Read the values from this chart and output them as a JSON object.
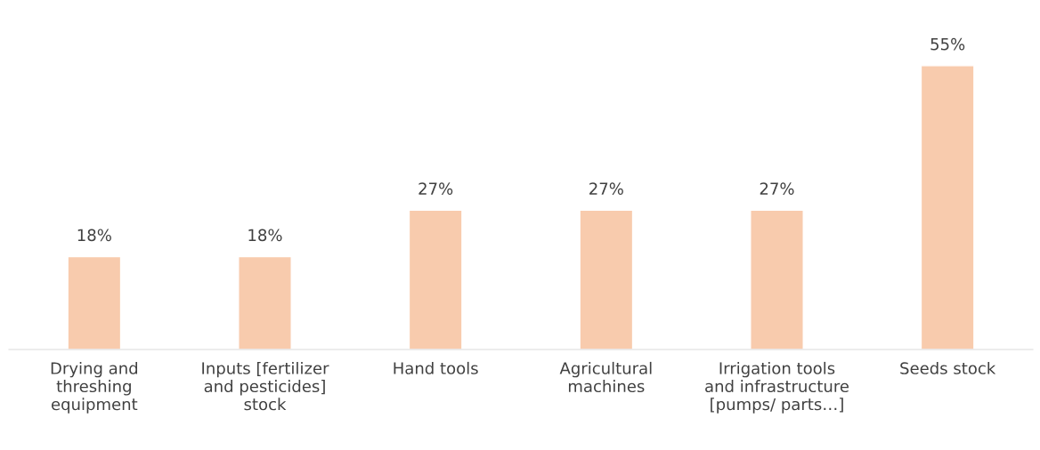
{
  "chart_data": {
    "type": "bar",
    "categories": [
      "Drying and threshing equipment",
      "Inputs [fertilizer and pesticides] stock",
      "Hand tools",
      "Agricultural machines",
      "Irrigation tools and infrastructure [pumps/ parts…]",
      "Seeds stock"
    ],
    "values": [
      18,
      18,
      27,
      27,
      27,
      55
    ],
    "value_labels": [
      "18%",
      "18%",
      "27%",
      "27%",
      "27%",
      "55%"
    ],
    "color": "#f8cbad",
    "grid": false,
    "legend": false
  }
}
